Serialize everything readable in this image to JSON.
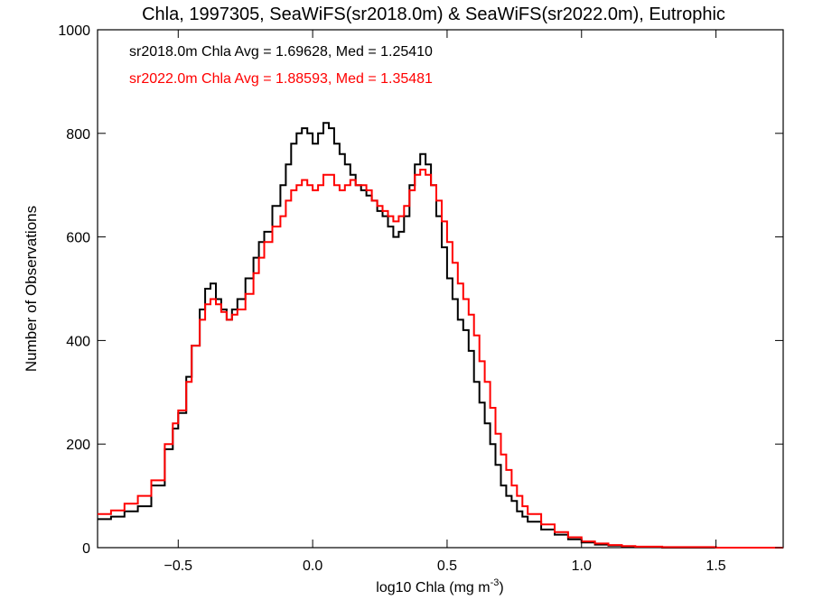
{
  "chart_data": {
    "type": "line",
    "title": "Chla, 1997305, SeaWiFS(sr2018.0m) & SeaWiFS(sr2022.0m), Eutrophic",
    "xlabel_main": "log10 Chla (mg m",
    "xlabel_sup": "-3",
    "xlabel_close": ")",
    "ylabel": "Number of Observations",
    "xlim": [
      -0.8,
      1.75
    ],
    "ylim": [
      0,
      1000
    ],
    "xticks": [
      -0.5,
      0.0,
      0.5,
      1.0,
      1.5
    ],
    "xtick_labels": [
      "−0.5",
      "0.0",
      "0.5",
      "1.0",
      "1.5"
    ],
    "yticks": [
      0,
      200,
      400,
      600,
      800,
      1000
    ],
    "ytick_labels": [
      "0",
      "200",
      "400",
      "600",
      "800",
      "1000"
    ],
    "grid": false,
    "step": true,
    "annotations": [
      {
        "text": "sr2018.0m Chla Avg = 1.69628, Med = 1.25410",
        "color": "#000000"
      },
      {
        "text": "sr2022.0m Chla Avg = 1.88593, Med = 1.35481",
        "color": "#ff0000"
      }
    ],
    "series": [
      {
        "color": "#000000",
        "x": [
          -0.8,
          -0.75,
          -0.7,
          -0.65,
          -0.6,
          -0.55,
          -0.52,
          -0.5,
          -0.47,
          -0.45,
          -0.42,
          -0.4,
          -0.38,
          -0.36,
          -0.34,
          -0.32,
          -0.3,
          -0.28,
          -0.25,
          -0.22,
          -0.2,
          -0.18,
          -0.15,
          -0.12,
          -0.1,
          -0.08,
          -0.06,
          -0.04,
          -0.02,
          0.0,
          0.02,
          0.04,
          0.06,
          0.08,
          0.1,
          0.12,
          0.14,
          0.16,
          0.18,
          0.2,
          0.22,
          0.24,
          0.26,
          0.28,
          0.3,
          0.32,
          0.34,
          0.36,
          0.38,
          0.4,
          0.42,
          0.44,
          0.46,
          0.48,
          0.5,
          0.52,
          0.54,
          0.56,
          0.58,
          0.6,
          0.62,
          0.64,
          0.66,
          0.68,
          0.7,
          0.72,
          0.74,
          0.76,
          0.78,
          0.8,
          0.85,
          0.9,
          0.95,
          1.0,
          1.05,
          1.1,
          1.15,
          1.2,
          1.3,
          1.4,
          1.5,
          1.6,
          1.75
        ],
        "y": [
          55,
          60,
          70,
          80,
          120,
          190,
          230,
          260,
          330,
          390,
          460,
          500,
          510,
          480,
          460,
          440,
          460,
          480,
          520,
          560,
          590,
          610,
          660,
          700,
          740,
          780,
          800,
          810,
          800,
          780,
          800,
          820,
          810,
          780,
          760,
          740,
          720,
          700,
          690,
          680,
          670,
          650,
          640,
          620,
          600,
          610,
          640,
          700,
          740,
          760,
          740,
          700,
          640,
          580,
          520,
          480,
          440,
          420,
          380,
          320,
          280,
          240,
          200,
          160,
          120,
          100,
          90,
          70,
          60,
          50,
          35,
          25,
          16,
          10,
          6,
          4,
          2,
          1,
          0,
          0,
          0,
          0,
          0
        ]
      },
      {
        "color": "#ff0000",
        "x": [
          -0.8,
          -0.75,
          -0.7,
          -0.65,
          -0.6,
          -0.55,
          -0.52,
          -0.5,
          -0.47,
          -0.45,
          -0.42,
          -0.4,
          -0.38,
          -0.36,
          -0.34,
          -0.32,
          -0.3,
          -0.28,
          -0.25,
          -0.22,
          -0.2,
          -0.18,
          -0.15,
          -0.12,
          -0.1,
          -0.08,
          -0.06,
          -0.04,
          -0.02,
          0.0,
          0.02,
          0.04,
          0.06,
          0.08,
          0.1,
          0.12,
          0.14,
          0.16,
          0.18,
          0.2,
          0.22,
          0.24,
          0.26,
          0.28,
          0.3,
          0.32,
          0.34,
          0.36,
          0.38,
          0.4,
          0.42,
          0.44,
          0.46,
          0.48,
          0.5,
          0.52,
          0.54,
          0.56,
          0.58,
          0.6,
          0.62,
          0.64,
          0.66,
          0.68,
          0.7,
          0.72,
          0.74,
          0.76,
          0.78,
          0.8,
          0.85,
          0.9,
          0.95,
          1.0,
          1.05,
          1.1,
          1.15,
          1.2,
          1.3,
          1.4,
          1.5,
          1.6,
          1.75
        ],
        "y": [
          65,
          72,
          85,
          100,
          130,
          200,
          240,
          265,
          320,
          390,
          440,
          470,
          480,
          470,
          455,
          440,
          450,
          460,
          490,
          530,
          560,
          590,
          620,
          640,
          670,
          690,
          700,
          710,
          700,
          690,
          700,
          720,
          720,
          700,
          690,
          700,
          710,
          700,
          700,
          690,
          670,
          660,
          650,
          640,
          630,
          640,
          660,
          690,
          720,
          730,
          720,
          700,
          670,
          630,
          590,
          550,
          510,
          480,
          450,
          410,
          360,
          320,
          270,
          220,
          180,
          150,
          120,
          100,
          80,
          65,
          45,
          30,
          20,
          12,
          8,
          5,
          3,
          2,
          1,
          1,
          0,
          0,
          0
        ]
      }
    ]
  }
}
